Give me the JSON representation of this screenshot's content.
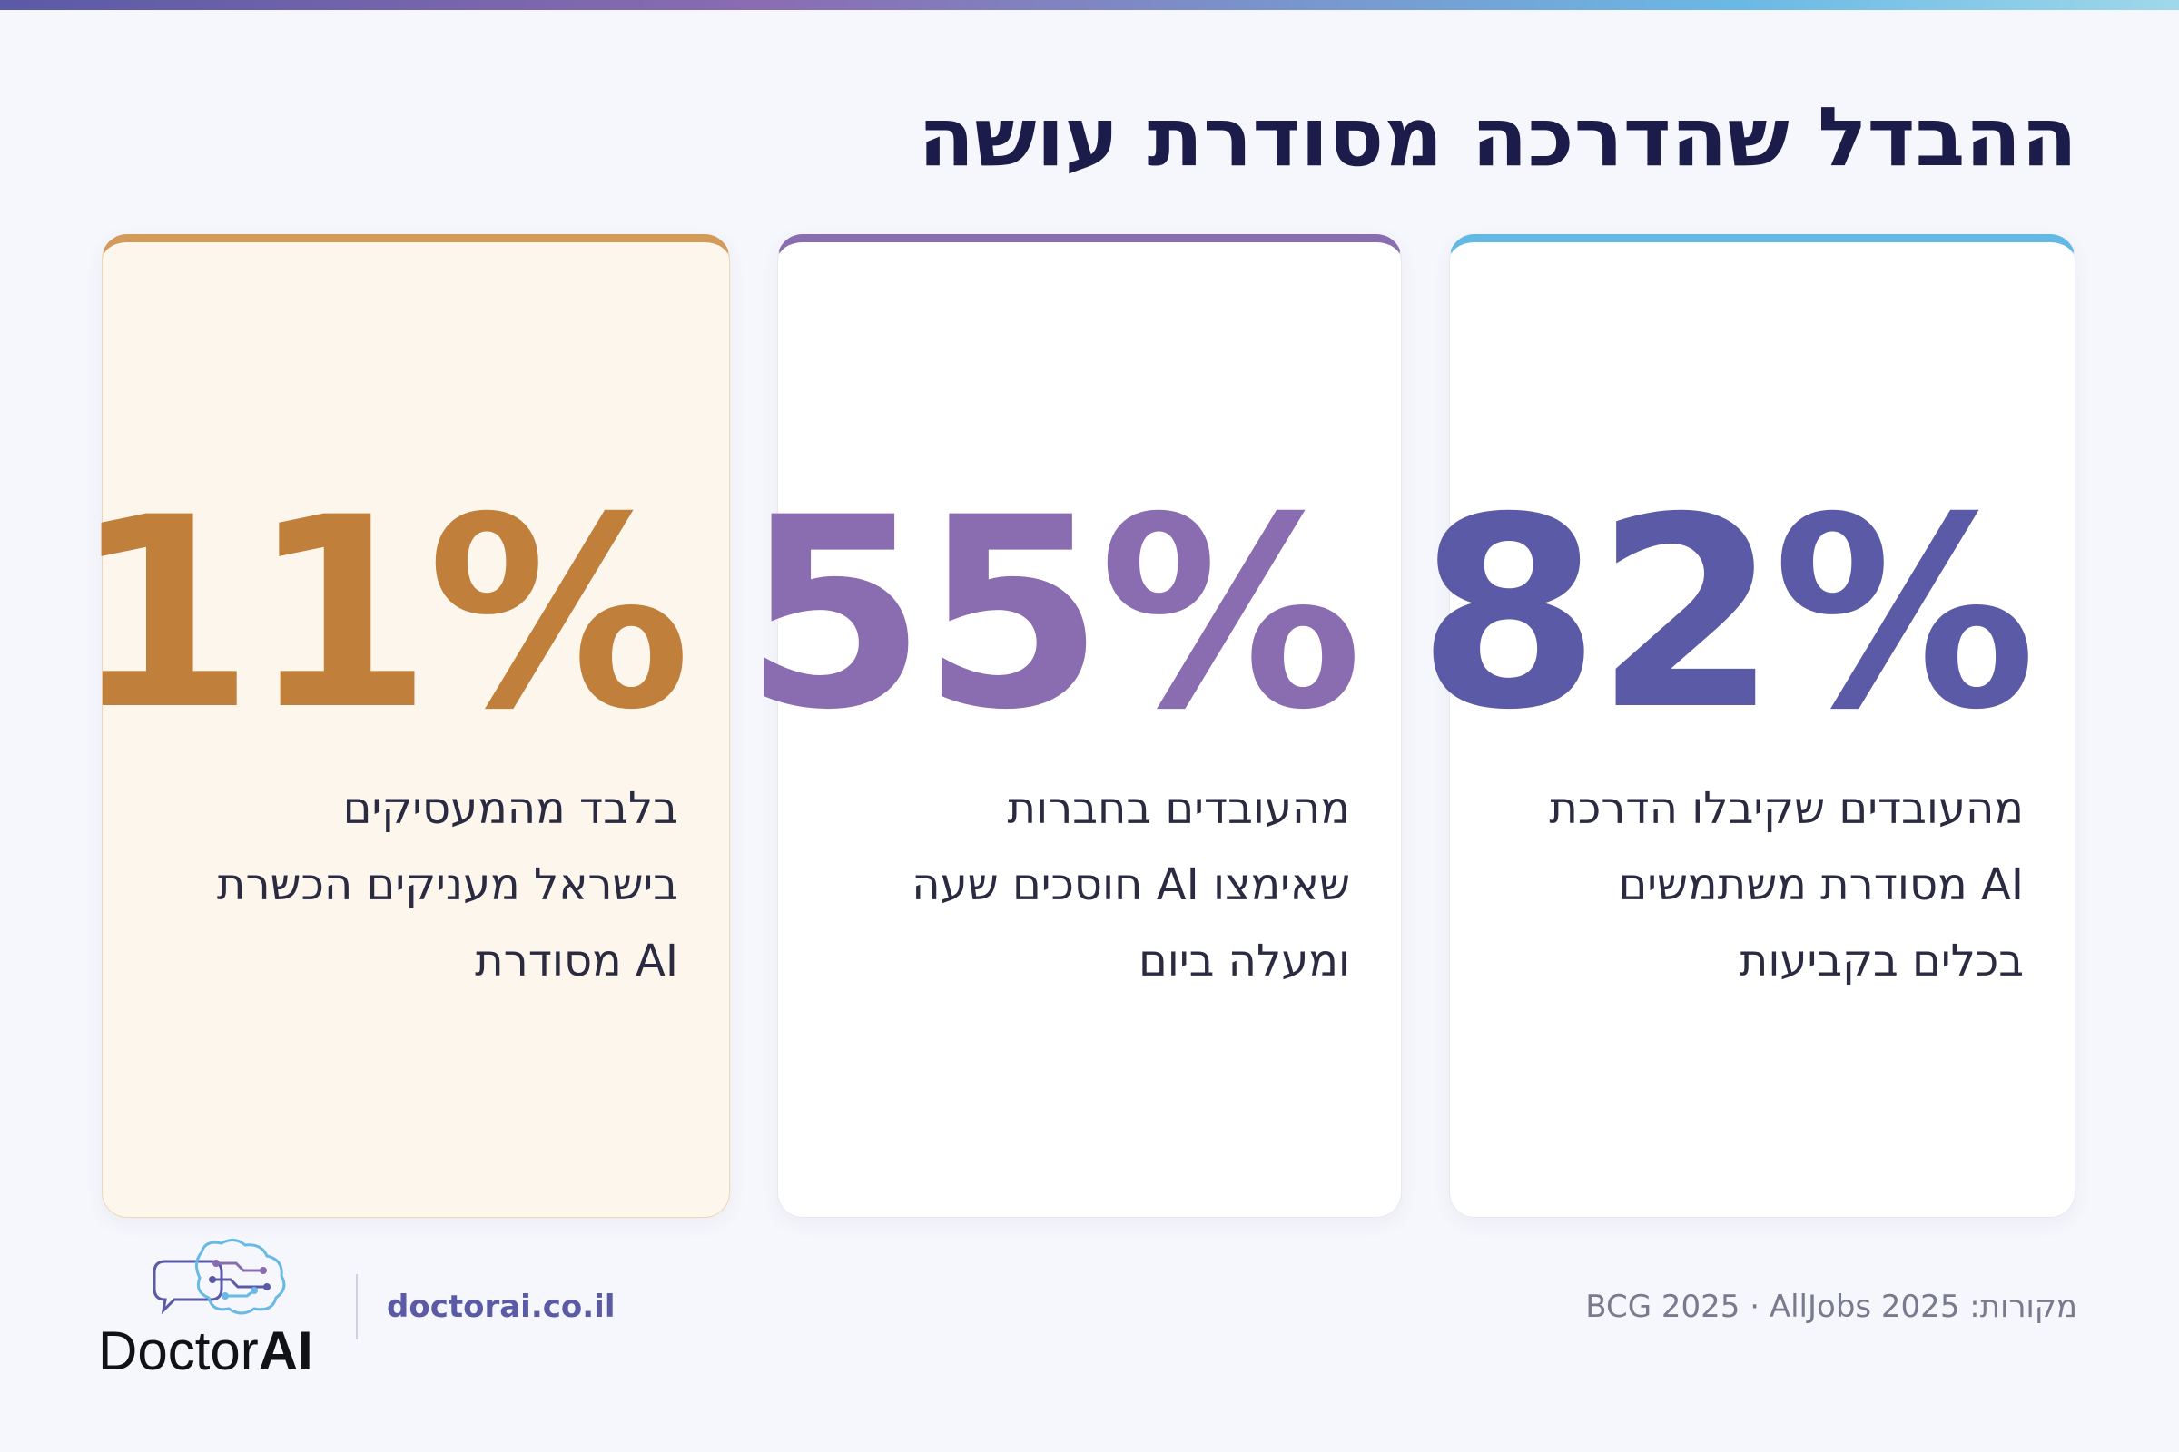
{
  "title": "ההבדל שהדרכה מסודרת עושה",
  "cards": [
    {
      "stat": "82%",
      "accent_color": "#5b5aa6",
      "lines": [
        "מהעובדים שקיבלו הדרכת",
        "AI מסודרת משתמשים",
        "בכלים בקביעות"
      ]
    },
    {
      "stat": "55%",
      "accent_color": "#8a6cb1",
      "lines": [
        "מהעובדים בחברות",
        "שאימצו AI חוסכים שעה",
        "ומעלה ביום"
      ]
    },
    {
      "stat": "11%",
      "accent_color": "#c07f3a",
      "lines": [
        "בלבד מהמעסיקים",
        "בישראל מעניקים הכשרת",
        "AI מסודרת"
      ]
    }
  ],
  "footer": {
    "logo_icon": "brain-circuit-icon",
    "logo_text_main": "Doctor",
    "logo_text_ai": "AI",
    "url": "doctorai.co.il",
    "sources_label": "מקורות:",
    "sources": "BCG 2025 · AllJobs 2025"
  }
}
